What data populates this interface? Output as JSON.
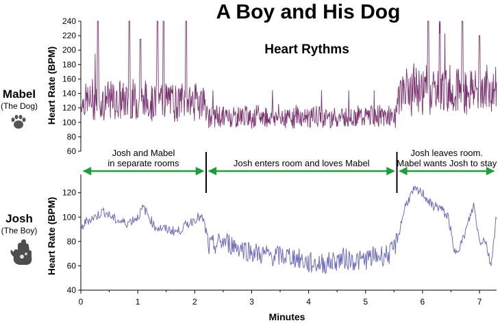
{
  "title": "A Boy and His Dog",
  "subtitle": "Heart Rythms",
  "colors": {
    "dog": "#7a3470",
    "boy": "#6b6bb8",
    "arrow": "#1f9d3a",
    "axis": "#000000"
  },
  "left_labels": {
    "dog_name": "Mabel",
    "dog_sub": "(The Dog)",
    "dog_icon": "paw-print-icon",
    "boy_name": "Josh",
    "boy_sub": "(The Boy)",
    "boy_icon": "handprint-icon"
  },
  "annotations": [
    {
      "lines": [
        "Josh and Mabel",
        "in separate rooms"
      ],
      "x_start": 0,
      "x_end": 2.2
    },
    {
      "lines": [
        "Josh enters room and loves Mabel"
      ],
      "x_start": 2.2,
      "x_end": 5.55
    },
    {
      "lines": [
        "Josh leaves room.",
        "Mabel wants Josh to stay"
      ],
      "x_start": 5.55,
      "x_end": 7.3
    }
  ],
  "dividers_x": [
    2.2,
    5.55
  ],
  "chart_data": [
    {
      "type": "line",
      "series": [
        {
          "name": "Mabel",
          "color": "#7a3470"
        }
      ],
      "ylabel": "Heart Rate (BPM)",
      "ylim": [
        60,
        240
      ],
      "yticks": [
        60,
        80,
        100,
        120,
        140,
        160,
        180,
        200,
        220,
        240
      ],
      "xlim": [
        0,
        7.3
      ],
      "segments": [
        {
          "x_start": 0,
          "x_end": 2.2,
          "mean": 130,
          "spread": 25,
          "peaks": [
            [
              0.3,
              240
            ],
            [
              0.85,
              240
            ],
            [
              1.05,
              215
            ],
            [
              1.35,
              240
            ],
            [
              1.45,
              240
            ],
            [
              1.85,
              240
            ]
          ]
        },
        {
          "x_start": 2.2,
          "x_end": 5.55,
          "mean": 108,
          "spread": 14,
          "peaks": []
        },
        {
          "x_start": 5.55,
          "x_end": 7.3,
          "mean": 145,
          "spread": 30,
          "peaks": [
            [
              6.1,
              240
            ],
            [
              6.3,
              240
            ],
            [
              6.7,
              240
            ],
            [
              7.0,
              220
            ]
          ]
        }
      ]
    },
    {
      "type": "line",
      "series": [
        {
          "name": "Josh",
          "color": "#6b6bb8"
        }
      ],
      "xlabel": "Minutes",
      "ylabel": "Heart Rate (BPM)",
      "ylim": [
        40,
        135
      ],
      "yticks": [
        40,
        60,
        80,
        100,
        120
      ],
      "xlim": [
        0,
        7.3
      ],
      "xticks": [
        0,
        1,
        2,
        3,
        4,
        5,
        6,
        7
      ],
      "keypoints": [
        [
          0,
          90
        ],
        [
          0.1,
          97
        ],
        [
          0.25,
          100
        ],
        [
          0.4,
          105
        ],
        [
          0.6,
          98
        ],
        [
          0.8,
          95
        ],
        [
          1.0,
          100
        ],
        [
          1.1,
          108
        ],
        [
          1.3,
          92
        ],
        [
          1.5,
          90
        ],
        [
          1.7,
          88
        ],
        [
          1.9,
          95
        ],
        [
          2.05,
          100
        ],
        [
          2.15,
          98
        ],
        [
          2.25,
          75
        ],
        [
          2.5,
          80
        ],
        [
          2.8,
          75
        ],
        [
          3.1,
          70
        ],
        [
          3.4,
          68
        ],
        [
          3.7,
          68
        ],
        [
          4.0,
          62
        ],
        [
          4.3,
          62
        ],
        [
          4.6,
          66
        ],
        [
          4.9,
          64
        ],
        [
          5.2,
          68
        ],
        [
          5.45,
          70
        ],
        [
          5.55,
          80
        ],
        [
          5.7,
          110
        ],
        [
          5.85,
          122
        ],
        [
          6.0,
          120
        ],
        [
          6.15,
          110
        ],
        [
          6.3,
          108
        ],
        [
          6.45,
          100
        ],
        [
          6.5,
          88
        ],
        [
          6.55,
          70
        ],
        [
          6.7,
          80
        ],
        [
          6.9,
          110
        ],
        [
          7.0,
          80
        ],
        [
          7.1,
          82
        ],
        [
          7.2,
          60
        ],
        [
          7.3,
          102
        ]
      ]
    }
  ]
}
